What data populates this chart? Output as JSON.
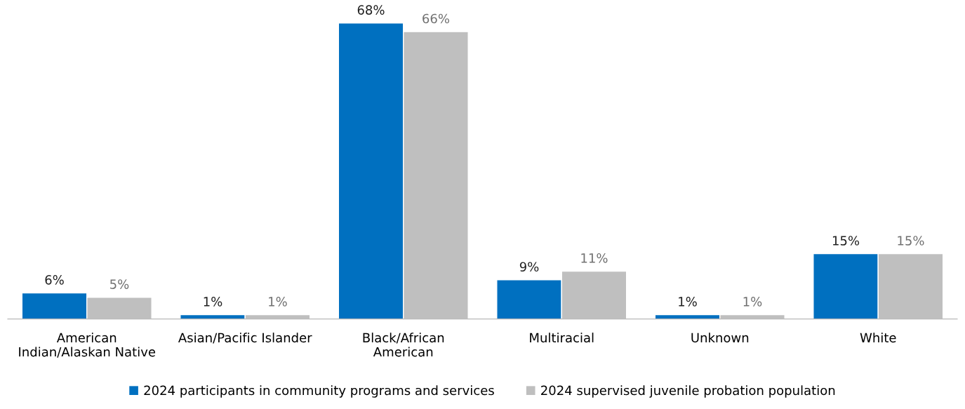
{
  "chart_data": {
    "type": "bar",
    "categories": [
      "American\nIndian/Alaskan Native",
      "Asian/Pacific Islander",
      "Black/African\nAmerican",
      "Multiracial",
      "Unknown",
      "White"
    ],
    "series": [
      {
        "name": "2024 participants in community programs and services",
        "color": "#0070c0",
        "values": [
          6,
          1,
          68,
          9,
          1,
          15
        ],
        "value_labels": [
          "6%",
          "1%",
          "68%",
          "9%",
          "1%",
          "15%"
        ]
      },
      {
        "name": "2024 supervised juvenile probation population",
        "color": "#bfbfbf",
        "values": [
          5,
          1,
          66,
          11,
          1,
          15
        ],
        "value_labels": [
          "5%",
          "1%",
          "66%",
          "11%",
          "1%",
          "15%"
        ]
      }
    ],
    "legend": "bottom",
    "grid": false,
    "tick_labels": "x"
  }
}
